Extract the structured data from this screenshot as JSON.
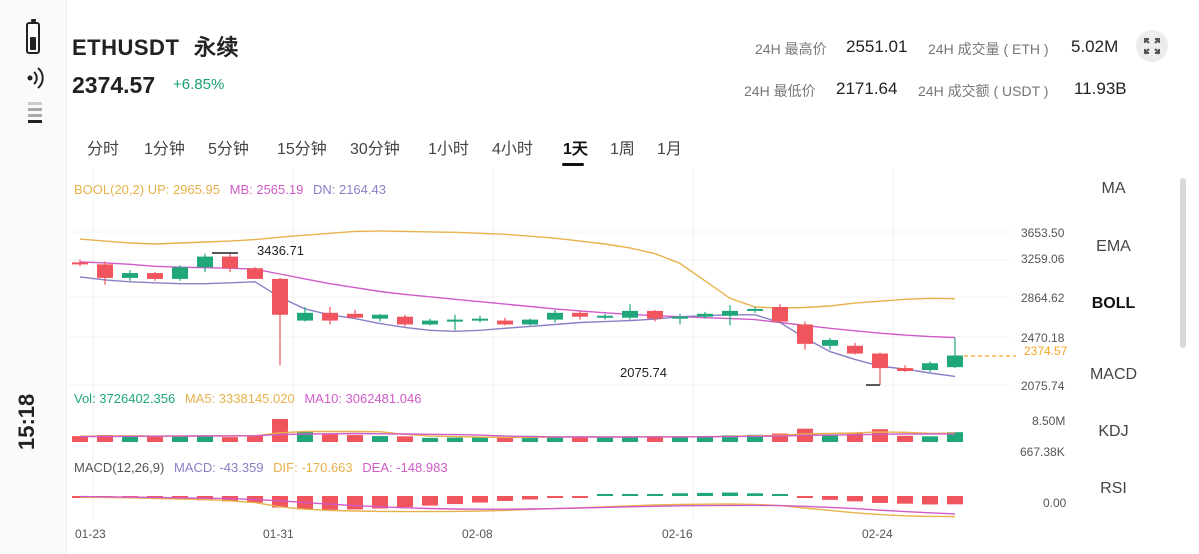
{
  "status_bar": {
    "time": "15:18",
    "battery_icon": "battery-icon",
    "signal_icon": "signal-icon"
  },
  "header": {
    "symbol": "ETHUSDT",
    "contract_type": "永续",
    "price": "2374.57",
    "change": "+6.85%",
    "stats": {
      "high_label": "24H 最高价",
      "high_value": "2551.01",
      "low_label": "24H 最低价",
      "low_value": "2171.64",
      "vol_eth_label": "24H 成交量 ( ETH )",
      "vol_eth_value": "5.02M",
      "vol_usdt_label": "24H 成交额 ( USDT )",
      "vol_usdt_value": "11.93B"
    },
    "expand_icon": "expand-icon"
  },
  "timeframes": {
    "items": [
      "分时",
      "1分钟",
      "5分钟",
      "15分钟",
      "30分钟",
      "1小时",
      "4小时",
      "1天",
      "1周",
      "1月"
    ],
    "active": "1天"
  },
  "indicators": {
    "items": [
      "MA",
      "EMA",
      "BOLL",
      "MACD",
      "KDJ",
      "RSI"
    ],
    "active": "BOLL"
  },
  "colors": {
    "up": "#1fa67a",
    "down": "#f0545c",
    "boll_up": "#e7b24a",
    "boll_mid": "#d05bc7",
    "boll_dn": "#8a7fc6",
    "macd_dif": "#e7b24a",
    "macd_dea": "#d05bc7",
    "macd_line": "#8a7fc6",
    "last_price": "#f5a623"
  },
  "chart_data": {
    "type": "candlestick",
    "main": {
      "legend": {
        "boll": "BOOL(20,2)",
        "up": "UP: 2965.95",
        "mb": "MB: 2565.19",
        "dn": "DN: 2164.43"
      },
      "y_ticks": [
        3653.5,
        3259.06,
        2864.62,
        2470.18,
        2075.74
      ],
      "y_tick_labels": [
        "3653.50",
        "3259.06",
        "2864.62",
        "2470.18",
        "2075.74"
      ],
      "last_price": 2374.57,
      "last_price_label": "2374.57",
      "high_marker_label": "3436.71",
      "low_marker_label": "2075.74",
      "x_labels": [
        "01-23",
        "01-31",
        "02-08",
        "02-16",
        "02-24"
      ],
      "x_label_days": [
        0,
        8,
        16,
        24,
        32
      ],
      "candles": [
        {
          "o": 3340,
          "h": 3370,
          "l": 3300,
          "c": 3320
        },
        {
          "o": 3320,
          "h": 3350,
          "l": 3110,
          "c": 3180
        },
        {
          "o": 3180,
          "h": 3260,
          "l": 3150,
          "c": 3230
        },
        {
          "o": 3230,
          "h": 3240,
          "l": 3150,
          "c": 3170
        },
        {
          "o": 3170,
          "h": 3310,
          "l": 3150,
          "c": 3290
        },
        {
          "o": 3290,
          "h": 3430,
          "l": 3240,
          "c": 3400
        },
        {
          "o": 3400,
          "h": 3436.71,
          "l": 3240,
          "c": 3280
        },
        {
          "o": 3280,
          "h": 3290,
          "l": 3170,
          "c": 3170
        },
        {
          "o": 3170,
          "h": 3180,
          "l": 2280,
          "c": 2800
        },
        {
          "o": 2740,
          "h": 2880,
          "l": 2730,
          "c": 2820
        },
        {
          "o": 2820,
          "h": 2880,
          "l": 2700,
          "c": 2740
        },
        {
          "o": 2810,
          "h": 2850,
          "l": 2760,
          "c": 2770
        },
        {
          "o": 2760,
          "h": 2810,
          "l": 2730,
          "c": 2800
        },
        {
          "o": 2780,
          "h": 2800,
          "l": 2680,
          "c": 2700
        },
        {
          "o": 2700,
          "h": 2760,
          "l": 2690,
          "c": 2740
        },
        {
          "o": 2740,
          "h": 2800,
          "l": 2640,
          "c": 2750
        },
        {
          "o": 2750,
          "h": 2790,
          "l": 2720,
          "c": 2760
        },
        {
          "o": 2740,
          "h": 2770,
          "l": 2690,
          "c": 2700
        },
        {
          "o": 2700,
          "h": 2760,
          "l": 2690,
          "c": 2750
        },
        {
          "o": 2750,
          "h": 2850,
          "l": 2720,
          "c": 2820
        },
        {
          "o": 2820,
          "h": 2840,
          "l": 2750,
          "c": 2780
        },
        {
          "o": 2780,
          "h": 2810,
          "l": 2750,
          "c": 2790
        },
        {
          "o": 2770,
          "h": 2910,
          "l": 2750,
          "c": 2840
        },
        {
          "o": 2840,
          "h": 2850,
          "l": 2730,
          "c": 2760
        },
        {
          "o": 2760,
          "h": 2810,
          "l": 2700,
          "c": 2780
        },
        {
          "o": 2780,
          "h": 2830,
          "l": 2760,
          "c": 2810
        },
        {
          "o": 2790,
          "h": 2900,
          "l": 2690,
          "c": 2840
        },
        {
          "o": 2840,
          "h": 2880,
          "l": 2820,
          "c": 2860
        },
        {
          "o": 2880,
          "h": 2910,
          "l": 2720,
          "c": 2730
        },
        {
          "o": 2700,
          "h": 2730,
          "l": 2440,
          "c": 2500
        },
        {
          "o": 2480,
          "h": 2560,
          "l": 2440,
          "c": 2540
        },
        {
          "o": 2480,
          "h": 2510,
          "l": 2390,
          "c": 2400
        },
        {
          "o": 2400,
          "h": 2410,
          "l": 2075.74,
          "c": 2250
        },
        {
          "o": 2250,
          "h": 2280,
          "l": 2210,
          "c": 2220
        },
        {
          "o": 2230,
          "h": 2320,
          "l": 2210,
          "c": 2300
        },
        {
          "o": 2260,
          "h": 2560,
          "l": 2250,
          "c": 2380
        }
      ],
      "boll_up": [
        3580,
        3560,
        3540,
        3530,
        3540,
        3550,
        3560,
        3575,
        3600,
        3620,
        3640,
        3660,
        3665,
        3660,
        3655,
        3650,
        3640,
        3630,
        3610,
        3590,
        3560,
        3530,
        3490,
        3430,
        3330,
        3150,
        2970,
        2880,
        2870,
        2875,
        2890,
        2920,
        2940,
        2960,
        2970,
        2965.95
      ],
      "boll_mid": [
        3345,
        3335,
        3320,
        3300,
        3290,
        3285,
        3280,
        3270,
        3220,
        3170,
        3120,
        3080,
        3040,
        3010,
        2985,
        2960,
        2935,
        2910,
        2885,
        2860,
        2840,
        2820,
        2805,
        2790,
        2780,
        2770,
        2760,
        2750,
        2720,
        2690,
        2660,
        2635,
        2610,
        2590,
        2575,
        2565.19
      ],
      "boll_dn": [
        3190,
        3160,
        3140,
        3130,
        3120,
        3120,
        3130,
        3140,
        2980,
        2860,
        2800,
        2760,
        2710,
        2670,
        2640,
        2630,
        2640,
        2660,
        2680,
        2700,
        2720,
        2730,
        2740,
        2755,
        2780,
        2790,
        2800,
        2800,
        2720,
        2560,
        2420,
        2340,
        2270,
        2240,
        2200,
        2164.43
      ]
    },
    "volume": {
      "legend": {
        "vol": "Vol: 3726402.356",
        "ma5": "MA5: 3338145.020",
        "ma10": "MA10: 3062481.046"
      },
      "y_tick_labels": [
        "8.50M",
        "667.38K"
      ],
      "y_top": 8500000,
      "y_bottom": 667380,
      "values": [
        2200000,
        2600000,
        2000000,
        1900000,
        2300000,
        2500000,
        1800000,
        2400000,
        8900000,
        3800000,
        2800000,
        2600000,
        2200000,
        2100000,
        1500000,
        1600000,
        1700000,
        1500000,
        2300000,
        2100000,
        1800000,
        1700000,
        2100000,
        1900000,
        1800000,
        2200000,
        2500000,
        2700000,
        3200000,
        5100000,
        2600000,
        3600000,
        4900000,
        2300000,
        2100000,
        3726402.356
      ],
      "ma5": [
        2100000,
        2200000,
        2300000,
        2200000,
        2250000,
        2300000,
        2200000,
        2300000,
        3500000,
        4000000,
        4000000,
        4000000,
        3900000,
        2900000,
        2200000,
        2000000,
        1800000,
        1700000,
        1700000,
        1800000,
        1900000,
        1900000,
        1900000,
        1950000,
        1900000,
        1950000,
        2100000,
        2300000,
        2500000,
        3100000,
        3200000,
        3400000,
        3800000,
        3700000,
        3300000,
        3338145.02
      ],
      "ma10": [
        2000000,
        2050000,
        2100000,
        2150000,
        2200000,
        2250000,
        2300000,
        2350000,
        2800000,
        3000000,
        3100000,
        3200000,
        3100000,
        3000000,
        2900000,
        2800000,
        2600000,
        2200000,
        2000000,
        1900000,
        1850000,
        1850000,
        1850000,
        1900000,
        1900000,
        1950000,
        2000000,
        2100000,
        2200000,
        2500000,
        2600000,
        2700000,
        2900000,
        3000000,
        3050000,
        3062481.046
      ]
    },
    "macd": {
      "legend": {
        "name": "MACD(12,26,9)",
        "macd": "MACD: -43.359",
        "dif": "DIF: -170.663",
        "dea": "DEA: -148.983"
      },
      "y_tick_labels": [
        "0.00"
      ],
      "range": [
        -200,
        20
      ],
      "hist": [
        -5,
        -8,
        -10,
        -15,
        -18,
        -22,
        -28,
        -35,
        -60,
        -70,
        -72,
        -70,
        -65,
        -58,
        -50,
        -42,
        -34,
        -26,
        -18,
        -10,
        -4,
        2,
        6,
        10,
        14,
        16,
        18,
        14,
        6,
        -8,
        -20,
        -28,
        -36,
        -40,
        -44,
        -43.359
      ],
      "dif": [
        -10,
        -12,
        -15,
        -20,
        -25,
        -30,
        -40,
        -55,
        -90,
        -110,
        -120,
        -125,
        -128,
        -130,
        -130,
        -128,
        -125,
        -120,
        -112,
        -105,
        -98,
        -90,
        -82,
        -75,
        -70,
        -68,
        -66,
        -70,
        -80,
        -100,
        -120,
        -140,
        -155,
        -165,
        -170,
        -170.663
      ],
      "dea": [
        -5,
        -7,
        -9,
        -12,
        -15,
        -18,
        -22,
        -28,
        -40,
        -55,
        -68,
        -80,
        -90,
        -98,
        -104,
        -108,
        -110,
        -110,
        -108,
        -105,
        -100,
        -95,
        -90,
        -86,
        -82,
        -80,
        -78,
        -78,
        -80,
        -86,
        -95,
        -105,
        -118,
        -130,
        -140,
        -148.983
      ]
    }
  }
}
